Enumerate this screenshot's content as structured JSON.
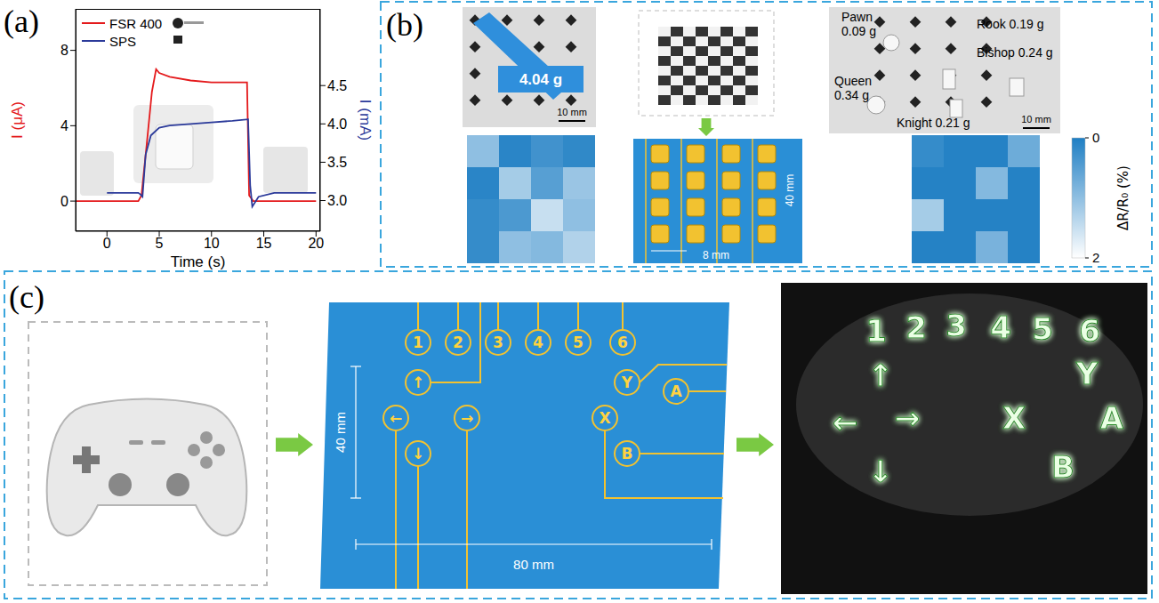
{
  "chart_data": {
    "type": "line",
    "x_label": "Time (s)",
    "y_label": "I (μA)",
    "y2_label": "I (mA)",
    "xlim": [
      -3,
      20.4
    ],
    "xticks": [
      0,
      5,
      10,
      15,
      20
    ],
    "ylim": [
      -1.6,
      10.2
    ],
    "yticks": [
      0,
      4,
      8
    ],
    "y2lim": [
      2.6,
      5.5
    ],
    "y2ticks": [
      {
        "value": 3,
        "label": "3.0"
      },
      3.5,
      {
        "value": 4,
        "label": "4.0"
      },
      4.5
    ],
    "legend": "upper left",
    "series": [
      {
        "name": "FSR 400",
        "color": "#e41a1c",
        "x": [
          -3,
          0,
          3,
          3.3,
          3.8,
          4.3,
          4.7,
          5,
          6,
          8,
          10,
          12,
          13.4,
          13.6,
          14,
          16,
          20
        ],
        "values": [
          0,
          0,
          0,
          0.3,
          3.0,
          5.8,
          7.0,
          6.8,
          6.6,
          6.4,
          6.3,
          6.3,
          6.3,
          0.3,
          0,
          0,
          0
        ]
      },
      {
        "name": "SPS",
        "color": "#2b3a9a",
        "axis": "y2",
        "x": [
          0,
          3,
          3.2,
          3.4,
          3.7,
          4.2,
          5,
          6,
          8,
          10,
          12,
          13.5,
          13.7,
          13.9,
          14.5,
          16,
          20
        ],
        "values": [
          3.1,
          3.1,
          3.08,
          3.05,
          3.6,
          3.85,
          3.95,
          3.98,
          4.0,
          4.02,
          4.04,
          4.06,
          3.2,
          2.92,
          3.05,
          3.1,
          3.1
        ]
      }
    ]
  },
  "panel_a": {
    "letter": "(a)"
  },
  "panel_b": {
    "letter": "(b)",
    "foam_label": "4.04 g",
    "scale_bar": "10 mm",
    "pieces": [
      {
        "name": "Pawn",
        "mass": "0.09 g"
      },
      {
        "name": "Rook",
        "mass": "0.19 g"
      },
      {
        "name": "Queen",
        "mass": "0.34 g"
      },
      {
        "name": "Bishop",
        "mass": "0.24 g"
      },
      {
        "name": "Knight",
        "mass": "0.21 g"
      }
    ],
    "array_size": "40 mm",
    "pitch": "8 mm",
    "heatmaps": [
      [
        [
          1.0,
          0.1,
          0.3,
          0.15
        ],
        [
          0.1,
          1.2,
          0.5,
          1.1
        ],
        [
          0.2,
          0.4,
          1.5,
          1.0
        ],
        [
          0.2,
          1.0,
          0.9,
          1.3
        ]
      ],
      [
        [
          0.2,
          0.05,
          0.05,
          0.7
        ],
        [
          0.05,
          0.05,
          0.9,
          0.05
        ],
        [
          1.2,
          0.05,
          0.05,
          0.05
        ],
        [
          0.05,
          0.05,
          0.8,
          0.05
        ]
      ]
    ],
    "colorbar": {
      "label": "ΔR/R₀ (%)",
      "range": [
        0,
        2
      ],
      "ticks": [
        0,
        2
      ]
    }
  },
  "panel_c": {
    "letter": "(c)",
    "width_label": "80 mm",
    "height_label": "40 mm",
    "keys": [
      "1",
      "2",
      "3",
      "4",
      "5",
      "6",
      "Y",
      "X",
      "A",
      "B",
      "↑",
      "←",
      "→",
      "↓"
    ]
  }
}
